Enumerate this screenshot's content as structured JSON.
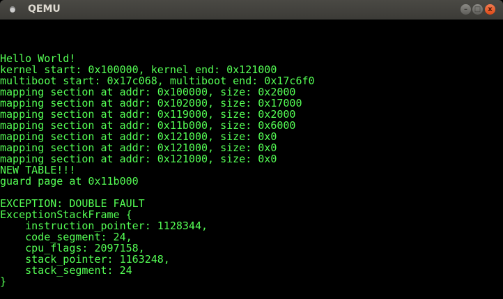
{
  "window": {
    "title": "QEMU",
    "buttons": {
      "minimize": "–",
      "maximize": "□",
      "close": "x"
    }
  },
  "terminal": {
    "color": "#55ff55",
    "lines": [
      "Hello World!",
      "kernel start: 0x100000, kernel end: 0x121000",
      "multiboot start: 0x17c068, multiboot end: 0x17c6f0",
      "mapping section at addr: 0x100000, size: 0x2000",
      "mapping section at addr: 0x102000, size: 0x17000",
      "mapping section at addr: 0x119000, size: 0x2000",
      "mapping section at addr: 0x11b000, size: 0x6000",
      "mapping section at addr: 0x121000, size: 0x0",
      "mapping section at addr: 0x121000, size: 0x0",
      "mapping section at addr: 0x121000, size: 0x0",
      "NEW TABLE!!!",
      "guard page at 0x11b000",
      "",
      "EXCEPTION: DOUBLE FAULT",
      "ExceptionStackFrame {",
      "    instruction_pointer: 1128344,",
      "    code_segment: 24,",
      "    cpu_flags: 2097158,",
      "    stack_pointer: 1163248,",
      "    stack_segment: 24",
      "}"
    ]
  }
}
